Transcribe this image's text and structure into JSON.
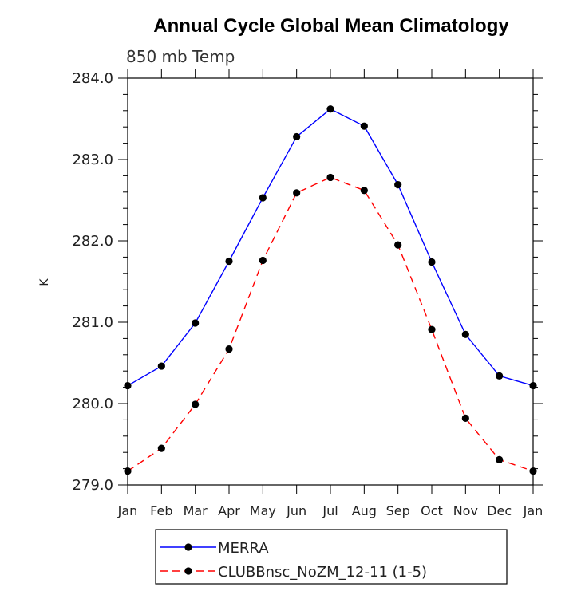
{
  "chart_data": {
    "type": "line",
    "title": "Annual Cycle Global Mean Climatology",
    "subtitle": "850 mb Temp",
    "ylabel": "K",
    "xlabel": "",
    "categories": [
      "Jan",
      "Feb",
      "Mar",
      "Apr",
      "May",
      "Jun",
      "Jul",
      "Aug",
      "Sep",
      "Oct",
      "Nov",
      "Dec",
      "Jan"
    ],
    "ylim": [
      279.0,
      284.0
    ],
    "yticks": [
      279.0,
      280.0,
      281.0,
      282.0,
      283.0,
      284.0
    ],
    "ytick_labels": [
      "279.0",
      "280.0",
      "281.0",
      "282.0",
      "283.0",
      "284.0"
    ],
    "grid": false,
    "legend": {
      "placement": "bottom"
    },
    "series": [
      {
        "name": "MERRA",
        "color": "#0000ff",
        "dash": "solid",
        "marker": "circle",
        "values": [
          280.22,
          280.46,
          280.99,
          281.75,
          282.53,
          283.28,
          283.62,
          283.41,
          282.69,
          281.74,
          280.85,
          280.34,
          280.22
        ]
      },
      {
        "name": "CLUBBnsc_NoZM_12-11 (1-5)",
        "color": "#ff0000",
        "dash": "dashed",
        "marker": "circle",
        "values": [
          279.17,
          279.45,
          279.99,
          280.67,
          281.76,
          282.59,
          282.78,
          282.62,
          281.95,
          280.91,
          279.82,
          279.31,
          279.17
        ]
      }
    ]
  }
}
